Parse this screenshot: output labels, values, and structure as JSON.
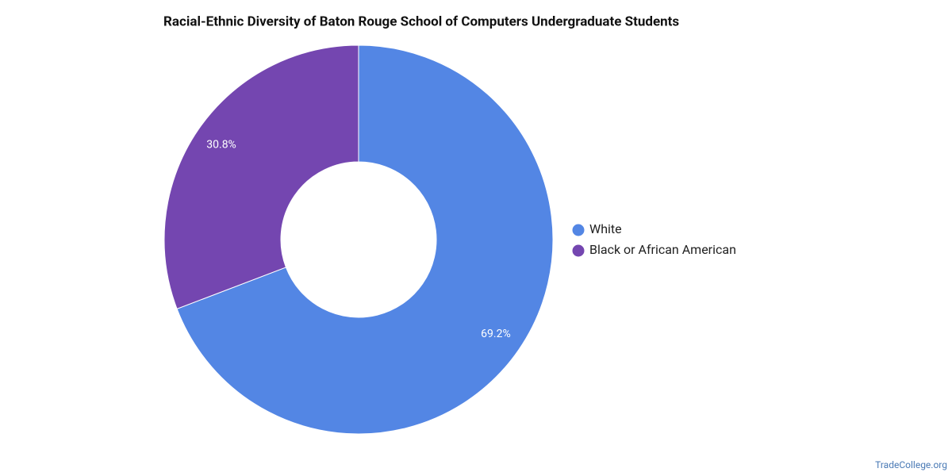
{
  "chart_data": {
    "type": "donut",
    "title": "Racial-Ethnic Diversity of Baton Rouge School of Computers Undergraduate Students",
    "categories": [
      "White",
      "Black or African American"
    ],
    "values": [
      69.2,
      30.8
    ],
    "value_labels": [
      "69.2%",
      "30.8%"
    ],
    "colors": [
      "#5386e4",
      "#7446b0"
    ],
    "legend": "right",
    "credit": "TradeCollege.org"
  }
}
